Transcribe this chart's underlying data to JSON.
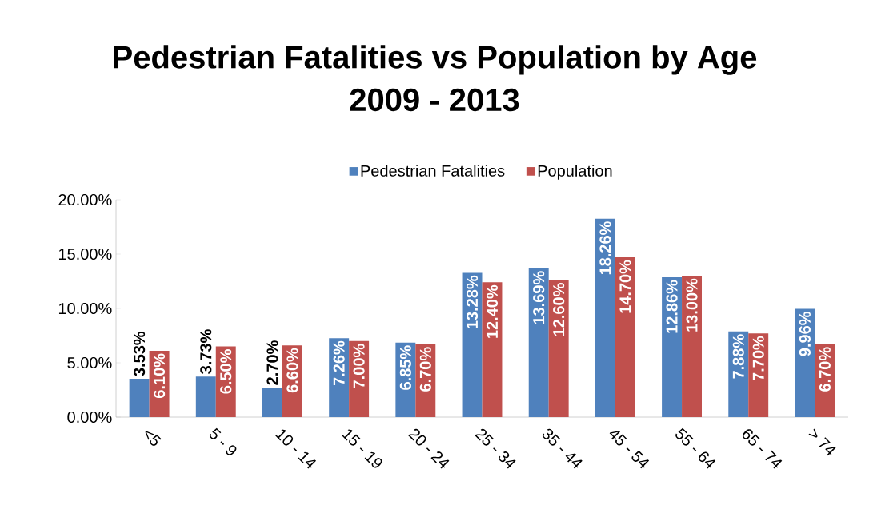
{
  "chart_data": {
    "type": "bar",
    "title": "Pedestrian Fatalities vs Population by Age",
    "subtitle": "2009 - 2013",
    "categories": [
      "<5",
      "5 - 9",
      "10 - 14",
      "15 - 19",
      "20 - 24",
      "25 - 34",
      "35 - 44",
      "45 - 54",
      "55 - 64",
      "65 - 74",
      "> 74"
    ],
    "series": [
      {
        "name": "Pedestrian Fatalities",
        "color": "#4f81bd",
        "values": [
          3.53,
          3.73,
          2.7,
          7.26,
          6.85,
          13.28,
          13.69,
          18.26,
          12.86,
          7.88,
          9.96
        ],
        "value_labels": [
          "3.53%",
          "3.73%",
          "2.70%",
          "7.26%",
          "6.85%",
          "13.28%",
          "13.69%",
          "18.26%",
          "12.86%",
          "7.88%",
          "9.96%"
        ]
      },
      {
        "name": "Population",
        "color": "#c0504d",
        "values": [
          6.1,
          6.5,
          6.6,
          7.0,
          6.7,
          12.4,
          12.6,
          14.7,
          13.0,
          7.7,
          6.7
        ],
        "value_labels": [
          "6.10%",
          "6.50%",
          "6.60%",
          "7.00%",
          "6.70%",
          "12.40%",
          "12.60%",
          "14.70%",
          "13.00%",
          "7.70%",
          "6.70%"
        ]
      }
    ],
    "ylim": [
      0,
      20
    ],
    "yticks": [
      {
        "value": 0,
        "label": "0.00%"
      },
      {
        "value": 5,
        "label": "5.00%"
      },
      {
        "value": 10,
        "label": "10.00%"
      },
      {
        "value": 15,
        "label": "15.00%"
      },
      {
        "value": 20,
        "label": "20.00%"
      }
    ],
    "legend": "top",
    "grid": false
  }
}
